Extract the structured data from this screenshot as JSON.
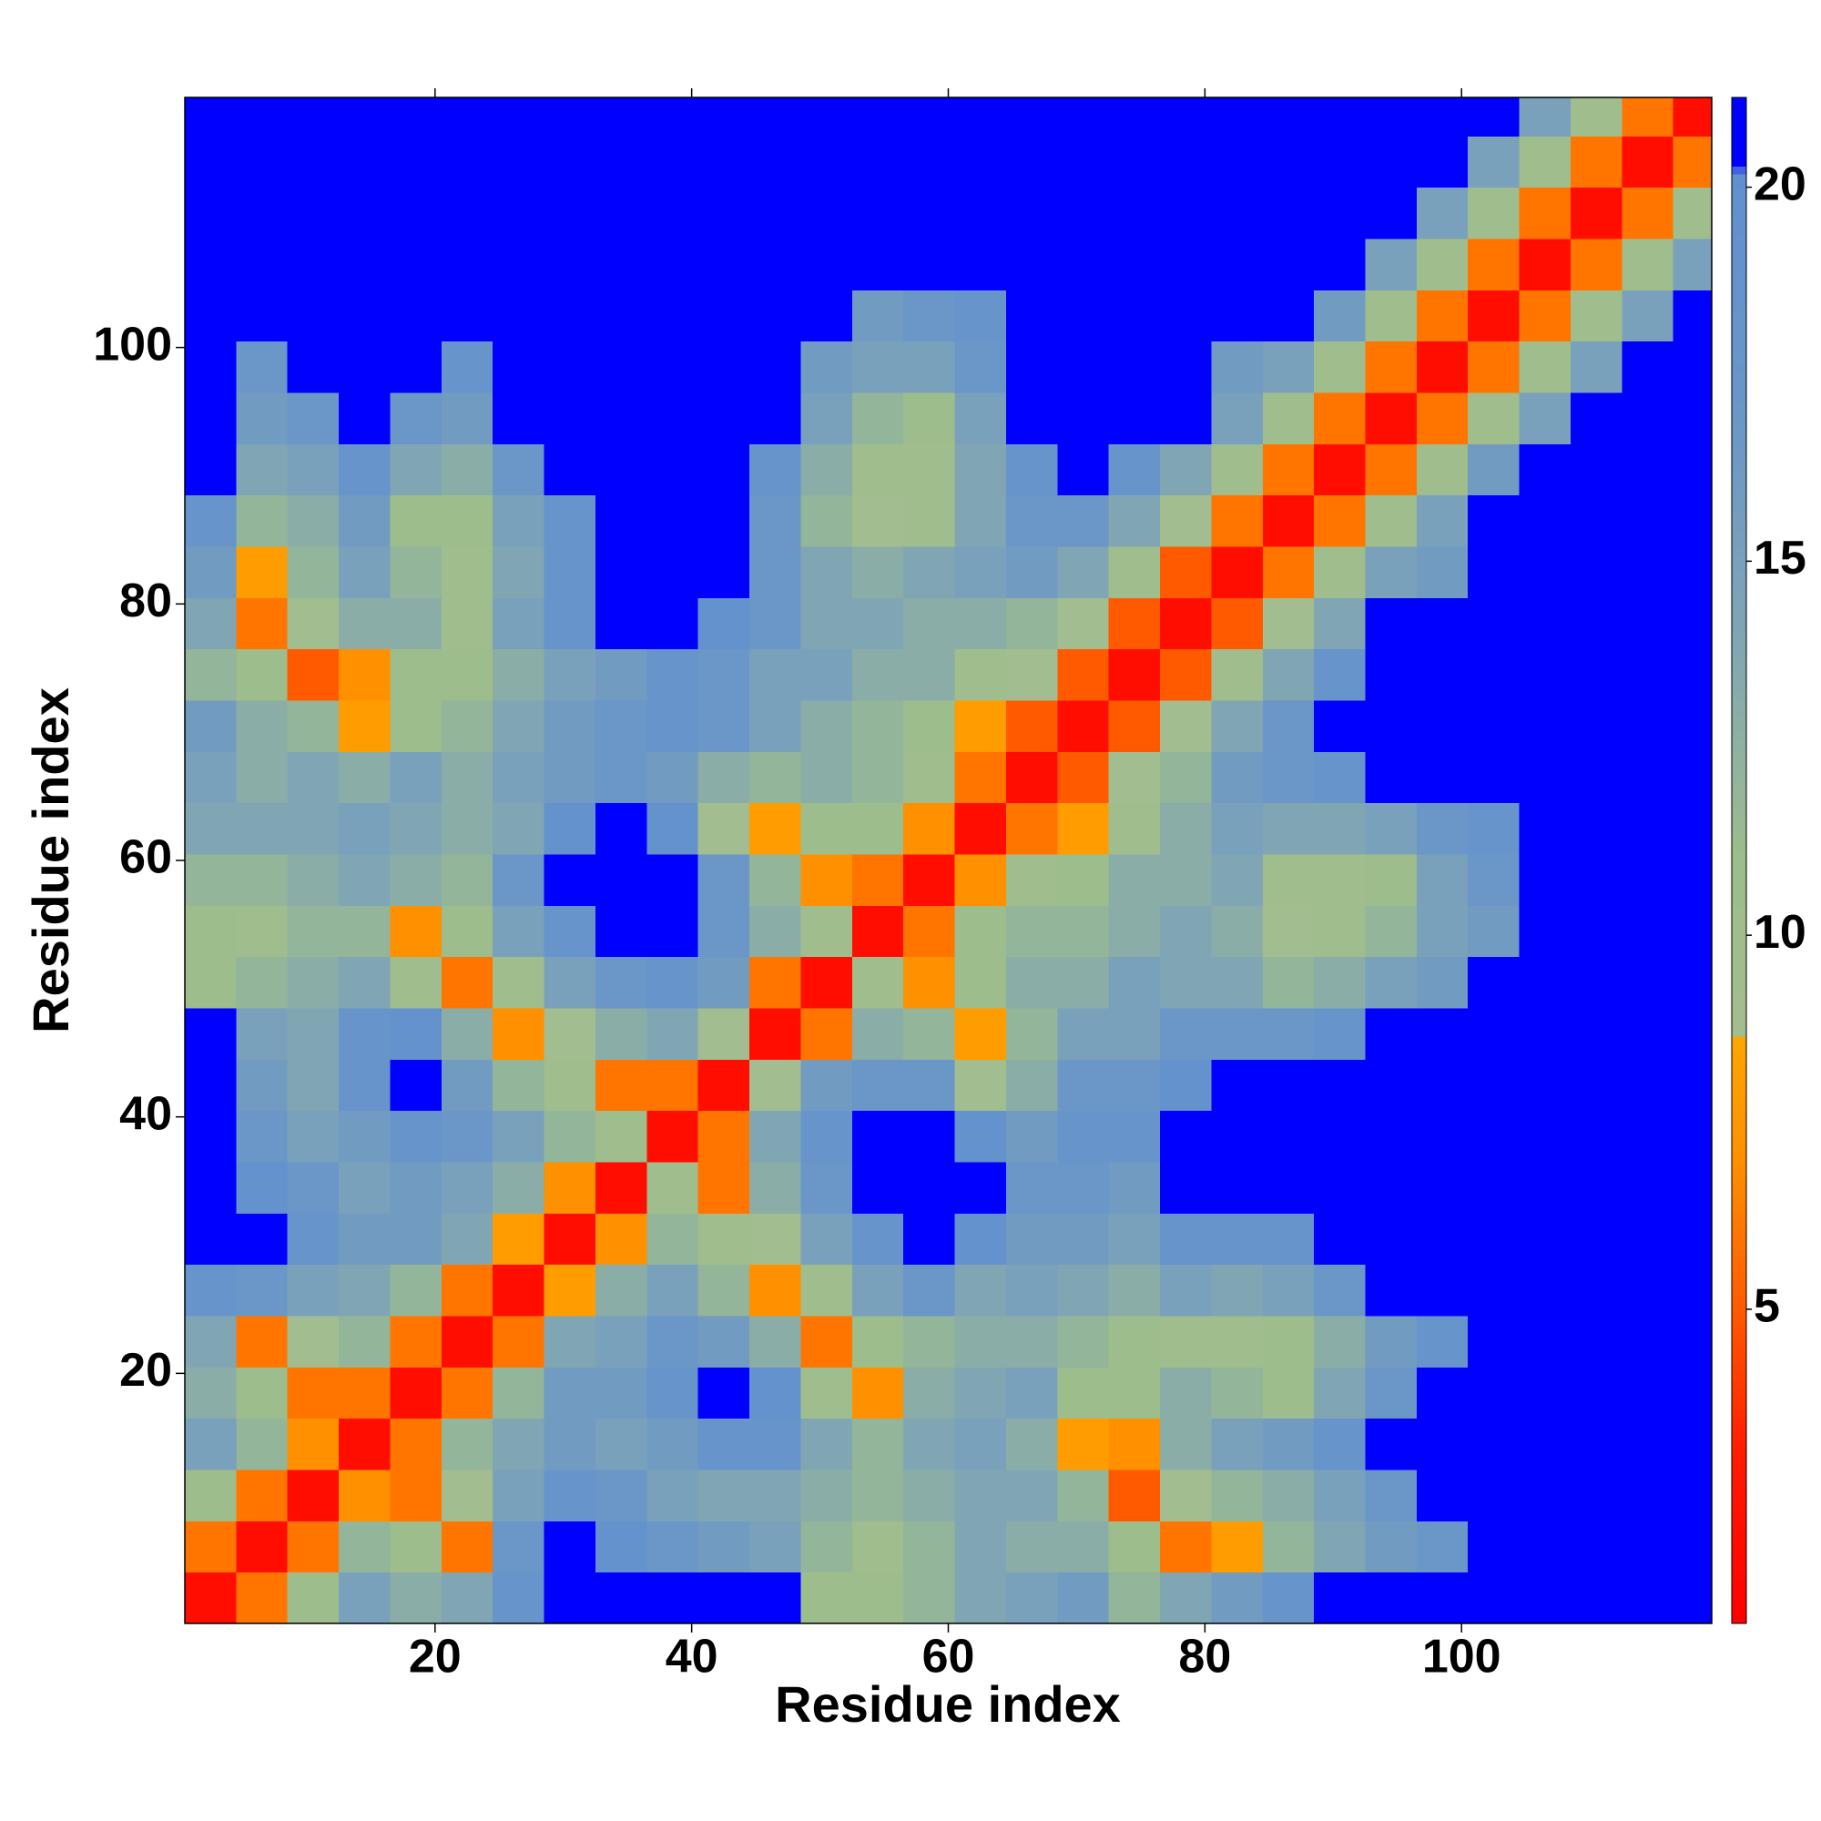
{
  "chart_data": {
    "type": "heatmap",
    "xlabel": "Residue index",
    "ylabel": "Residue index",
    "xlim": [
      0.5,
      119.5
    ],
    "ylim": [
      0.5,
      119.5
    ],
    "xticks": [
      20,
      40,
      60,
      80,
      100
    ],
    "yticks": [
      20,
      40,
      60,
      80,
      100
    ],
    "xbins": [
      0.5,
      4.5,
      8.5,
      12.5,
      16.5,
      20.5,
      24.5,
      28.5,
      32.5,
      36.5,
      40.5,
      44.5,
      48.5,
      52.5,
      56.5,
      60.5,
      64.5,
      68.5,
      72.5,
      76.5,
      80.5,
      84.5,
      88.5,
      92.5,
      96.5,
      100.5,
      104.5,
      108.5,
      112.5,
      116.5,
      119.5
    ],
    "ybins": [
      0.5,
      4.5,
      8.5,
      12.5,
      16.5,
      20.5,
      24.5,
      28.5,
      32.5,
      36.5,
      40.5,
      44.5,
      48.5,
      52.5,
      56.5,
      60.5,
      64.5,
      68.5,
      72.5,
      76.5,
      80.5,
      84.5,
      88.5,
      92.5,
      96.5,
      100.5,
      104.5,
      108.5,
      112.5,
      116.5,
      119.5
    ],
    "z": [
      [
        2,
        6,
        11,
        15,
        13,
        14,
        18,
        21,
        21,
        21,
        21,
        21,
        11,
        11,
        12,
        14,
        15,
        16,
        12,
        14,
        16,
        18,
        21,
        21,
        21,
        21,
        21,
        21,
        21,
        21
      ],
      [
        6,
        2,
        6,
        12,
        11,
        6,
        17,
        21,
        19,
        17,
        16,
        15,
        12,
        10,
        12,
        14,
        13,
        13,
        11,
        6,
        8,
        12,
        14,
        16,
        17,
        21,
        21,
        21,
        21,
        21
      ],
      [
        11,
        6,
        2,
        7,
        6,
        9,
        15,
        18,
        17,
        15,
        14,
        14,
        13,
        12,
        13,
        14,
        14,
        12,
        5,
        9,
        12,
        13,
        15,
        17,
        21,
        21,
        21,
        21,
        21,
        21
      ],
      [
        15,
        12,
        7,
        2,
        6,
        12,
        14,
        16,
        15,
        16,
        18,
        18,
        14,
        12,
        14,
        15,
        13,
        8,
        7,
        13,
        15,
        16,
        18,
        21,
        21,
        21,
        21,
        21,
        21,
        21
      ],
      [
        13,
        11,
        6,
        6,
        2,
        6,
        12,
        16,
        16,
        18,
        21,
        19,
        10,
        7,
        13,
        14,
        15,
        11,
        11,
        13,
        12,
        11,
        14,
        17,
        21,
        21,
        21,
        21,
        21,
        21
      ],
      [
        14,
        6,
        9,
        12,
        6,
        2,
        6,
        14,
        15,
        17,
        16,
        13,
        6,
        11,
        12,
        13,
        13,
        12,
        11,
        10,
        10,
        11,
        13,
        16,
        18,
        21,
        21,
        21,
        21,
        21
      ],
      [
        18,
        17,
        15,
        14,
        12,
        6,
        2,
        8,
        13,
        15,
        12,
        7,
        10,
        15,
        17,
        14,
        15,
        14,
        13,
        15,
        14,
        15,
        17,
        21,
        21,
        21,
        21,
        21,
        21,
        21
      ],
      [
        21,
        21,
        18,
        16,
        16,
        14,
        8,
        2,
        7,
        12,
        10,
        9,
        15,
        18,
        21,
        19,
        16,
        16,
        15,
        18,
        18,
        18,
        21,
        21,
        21,
        21,
        21,
        21,
        21,
        21
      ],
      [
        21,
        19,
        17,
        15,
        16,
        15,
        13,
        7,
        2,
        10,
        6,
        13,
        17,
        21,
        21,
        21,
        17,
        17,
        16,
        21,
        21,
        21,
        21,
        21,
        21,
        21,
        21,
        21,
        21,
        21
      ],
      [
        21,
        17,
        15,
        16,
        18,
        17,
        15,
        12,
        10,
        2,
        6,
        14,
        18,
        21,
        21,
        19,
        16,
        18,
        18,
        21,
        21,
        21,
        21,
        21,
        21,
        21,
        21,
        21,
        21,
        21
      ],
      [
        21,
        16,
        14,
        18,
        21,
        16,
        12,
        10,
        6,
        6,
        2,
        9,
        16,
        17,
        17,
        9,
        13,
        17,
        17,
        19,
        21,
        21,
        21,
        21,
        21,
        21,
        21,
        21,
        21,
        21
      ],
      [
        21,
        15,
        14,
        18,
        19,
        13,
        7,
        9,
        13,
        14,
        9,
        2,
        6,
        13,
        12,
        8,
        12,
        15,
        15,
        17,
        17,
        17,
        18,
        21,
        21,
        21,
        21,
        21,
        21,
        21
      ],
      [
        11,
        12,
        13,
        14,
        10,
        6,
        10,
        15,
        17,
        18,
        16,
        6,
        2,
        10,
        7,
        11,
        13,
        13,
        15,
        14,
        14,
        12,
        13,
        15,
        16,
        21,
        21,
        21,
        21,
        21
      ],
      [
        11,
        10,
        12,
        12,
        7,
        11,
        15,
        18,
        21,
        21,
        17,
        13,
        10,
        2,
        6,
        11,
        12,
        12,
        13,
        14,
        13,
        9,
        10,
        12,
        15,
        16,
        21,
        21,
        21,
        21
      ],
      [
        12,
        12,
        13,
        14,
        13,
        12,
        17,
        21,
        21,
        21,
        17,
        12,
        7,
        6,
        2,
        7,
        10,
        11,
        13,
        13,
        14,
        10,
        10,
        11,
        15,
        17,
        21,
        21,
        21,
        21
      ],
      [
        14,
        14,
        14,
        15,
        14,
        13,
        14,
        19,
        21,
        19,
        9,
        8,
        11,
        11,
        7,
        2,
        6,
        8,
        10,
        13,
        15,
        14,
        14,
        15,
        17,
        18,
        21,
        21,
        21,
        21
      ],
      [
        15,
        13,
        14,
        13,
        15,
        13,
        15,
        16,
        17,
        16,
        13,
        12,
        13,
        12,
        10,
        6,
        2,
        5,
        9,
        12,
        16,
        17,
        18,
        21,
        21,
        21,
        21,
        21,
        21,
        21
      ],
      [
        16,
        13,
        12,
        8,
        11,
        12,
        14,
        16,
        17,
        18,
        17,
        15,
        13,
        12,
        11,
        8,
        5,
        2,
        5,
        9,
        14,
        17,
        21,
        21,
        21,
        21,
        21,
        21,
        21,
        21
      ],
      [
        12,
        11,
        5,
        7,
        11,
        11,
        13,
        15,
        16,
        18,
        17,
        15,
        15,
        13,
        13,
        10,
        9,
        5,
        2,
        5,
        10,
        14,
        18,
        21,
        21,
        21,
        21,
        21,
        21,
        21
      ],
      [
        14,
        6,
        9,
        13,
        13,
        10,
        15,
        18,
        21,
        21,
        19,
        17,
        14,
        14,
        13,
        13,
        12,
        9,
        5,
        2,
        5,
        9,
        14,
        21,
        21,
        21,
        21,
        21,
        21,
        21
      ],
      [
        16,
        8,
        12,
        15,
        12,
        10,
        14,
        18,
        21,
        21,
        21,
        17,
        14,
        13,
        14,
        15,
        16,
        14,
        10,
        5,
        2,
        6,
        10,
        15,
        16,
        21,
        21,
        21,
        21,
        21
      ],
      [
        18,
        12,
        13,
        16,
        11,
        11,
        15,
        18,
        21,
        21,
        21,
        17,
        12,
        9,
        10,
        14,
        17,
        17,
        14,
        9,
        6,
        2,
        6,
        10,
        15,
        21,
        21,
        21,
        21,
        21
      ],
      [
        21,
        14,
        15,
        18,
        14,
        13,
        17,
        21,
        21,
        21,
        21,
        18,
        13,
        10,
        10,
        14,
        18,
        21,
        18,
        14,
        10,
        6,
        2,
        6,
        10,
        16,
        21,
        21,
        21,
        21
      ],
      [
        21,
        16,
        17,
        21,
        17,
        16,
        21,
        21,
        21,
        21,
        21,
        21,
        15,
        12,
        11,
        15,
        21,
        21,
        21,
        21,
        15,
        10,
        6,
        2,
        6,
        10,
        15,
        21,
        21,
        21
      ],
      [
        21,
        17,
        21,
        21,
        21,
        18,
        21,
        21,
        21,
        21,
        21,
        21,
        16,
        15,
        15,
        17,
        21,
        21,
        21,
        21,
        16,
        15,
        10,
        6,
        2,
        6,
        10,
        15,
        21,
        21
      ],
      [
        21,
        21,
        21,
        21,
        21,
        21,
        21,
        21,
        21,
        21,
        21,
        21,
        21,
        16,
        17,
        18,
        21,
        21,
        21,
        21,
        21,
        21,
        16,
        10,
        6,
        2,
        6,
        10,
        15,
        21
      ],
      [
        21,
        21,
        21,
        21,
        21,
        21,
        21,
        21,
        21,
        21,
        21,
        21,
        21,
        21,
        21,
        21,
        21,
        21,
        21,
        21,
        21,
        21,
        21,
        15,
        10,
        6,
        2,
        6,
        10,
        15
      ],
      [
        21,
        21,
        21,
        21,
        21,
        21,
        21,
        21,
        21,
        21,
        21,
        21,
        21,
        21,
        21,
        21,
        21,
        21,
        21,
        21,
        21,
        21,
        21,
        21,
        15,
        10,
        6,
        2,
        6,
        10
      ],
      [
        21,
        21,
        21,
        21,
        21,
        21,
        21,
        21,
        21,
        21,
        21,
        21,
        21,
        21,
        21,
        21,
        21,
        21,
        21,
        21,
        21,
        21,
        21,
        21,
        21,
        15,
        10,
        6,
        2,
        6
      ],
      [
        21,
        21,
        21,
        21,
        21,
        21,
        21,
        21,
        21,
        21,
        21,
        21,
        21,
        21,
        21,
        21,
        21,
        21,
        21,
        21,
        21,
        21,
        21,
        21,
        21,
        21,
        15,
        10,
        6,
        2
      ]
    ],
    "clim": [
      0.8,
      21.2
    ],
    "cticks": [
      5,
      10,
      15,
      20
    ],
    "colorscale": [
      [
        0.8,
        "#ff0000"
      ],
      [
        3,
        "#ff1a00"
      ],
      [
        5,
        "#ff5a00"
      ],
      [
        7,
        "#ff9000"
      ],
      [
        8.6,
        "#ffa500"
      ],
      [
        8.7,
        "#a3bd8f"
      ],
      [
        11,
        "#9dbd8c"
      ],
      [
        14,
        "#80a6b4"
      ],
      [
        17,
        "#6a96c8"
      ],
      [
        20.2,
        "#6090d0"
      ],
      [
        20.3,
        "#0000ff"
      ],
      [
        21.2,
        "#0000ff"
      ]
    ]
  }
}
